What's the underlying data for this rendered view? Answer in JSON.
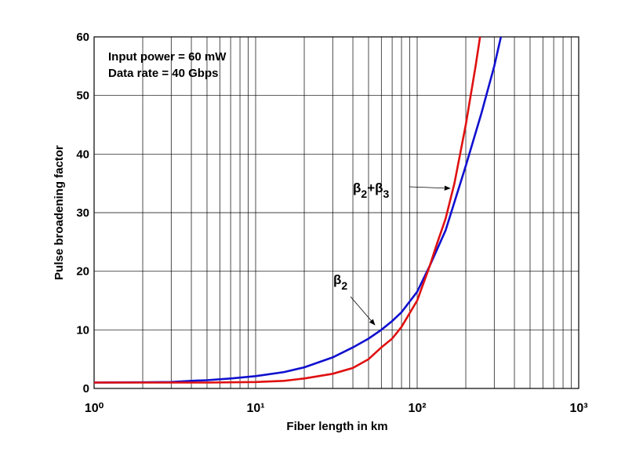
{
  "chart_data": {
    "type": "line",
    "xlabel": "Fiber length in km",
    "ylabel": "Pulse broadening factor",
    "xscale": "log",
    "grid": true,
    "xlim": [
      1,
      1000
    ],
    "ylim": [
      0,
      60
    ],
    "xticks": [
      {
        "value": 1,
        "label": "10⁰"
      },
      {
        "value": 10,
        "label": "10¹"
      },
      {
        "value": 100,
        "label": "10²"
      },
      {
        "value": 1000,
        "label": "10³"
      }
    ],
    "xminor": [
      2,
      3,
      4,
      5,
      6,
      7,
      8,
      9,
      20,
      30,
      40,
      50,
      60,
      70,
      80,
      90,
      200,
      300,
      400,
      500,
      600,
      700,
      800,
      900
    ],
    "yticks": [
      0,
      10,
      20,
      30,
      40,
      50,
      60
    ],
    "series": [
      {
        "name": [
          "β",
          "2"
        ],
        "color": "#1010d0",
        "x": [
          1,
          2,
          3,
          4,
          5,
          7,
          10,
          15,
          20,
          30,
          40,
          50,
          60,
          70,
          80,
          100,
          120,
          150,
          200,
          250,
          300,
          330
        ],
        "values": [
          1,
          1.05,
          1.1,
          1.3,
          1.4,
          1.7,
          2.1,
          2.8,
          3.6,
          5.3,
          7,
          8.5,
          10,
          11.5,
          13,
          16.5,
          21,
          27,
          38,
          47,
          55,
          60
        ]
      },
      {
        "name": [
          "β",
          "2",
          "+β",
          "3"
        ],
        "color": "#e01010",
        "x": [
          1,
          5,
          10,
          15,
          20,
          30,
          40,
          50,
          60,
          70,
          80,
          100,
          120,
          130,
          150,
          170,
          200,
          230,
          245
        ],
        "values": [
          1,
          1,
          1.1,
          1.3,
          1.7,
          2.5,
          3.5,
          5,
          7,
          8.5,
          10.5,
          15,
          21,
          24,
          29,
          35,
          45,
          55,
          60
        ]
      }
    ],
    "annotations": [
      "Input power = 60 mW",
      "Data rate = 40 Gbps"
    ]
  }
}
